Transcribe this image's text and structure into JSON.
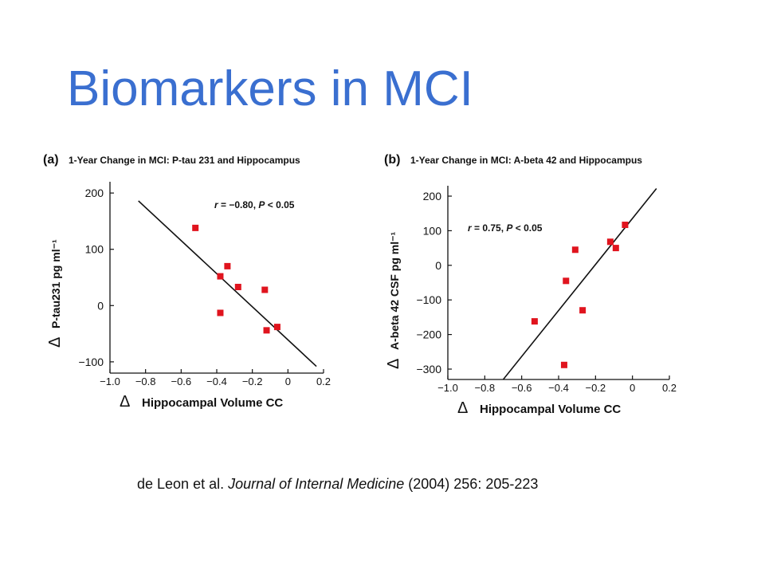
{
  "slide": {
    "title": "Biomarkers in MCI",
    "title_color": "#3a6fd0",
    "marker_color": "#e0141e"
  },
  "citation": {
    "authors": "de Leon et al.",
    "journal": "Journal of Internal Medicine",
    "year": "(2004) 256: 205-223"
  },
  "chart_data": [
    {
      "type": "scatter",
      "panel_label": "(a)",
      "title": "1-Year Change in MCI: P-tau 231 and Hippocampus",
      "xlabel_symbol": "Δ",
      "xlabel": "Hippocampal Volume CC",
      "ylabel_symbol": "Δ",
      "ylabel": "P-tau231 pg ml⁻¹",
      "stat_r": "r",
      "stat_mid": " = −0.80, ",
      "stat_p": "P",
      "stat_end": " < 0.05",
      "xlim": [
        -1.0,
        0.2
      ],
      "ylim": [
        -120,
        220
      ],
      "xticks": [
        -1.0,
        -0.8,
        -0.6,
        -0.4,
        -0.2,
        0,
        0.2
      ],
      "xtick_labels": [
        "−1.0",
        "−0.8",
        "−0.6",
        "−0.4",
        "−0.2",
        "0",
        "0.2"
      ],
      "yticks": [
        200,
        100,
        0,
        -100
      ],
      "ytick_labels": [
        "200",
        "100",
        "0",
        "−100"
      ],
      "points": [
        {
          "x": -0.52,
          "y": 138
        },
        {
          "x": -0.34,
          "y": 70
        },
        {
          "x": -0.38,
          "y": 52
        },
        {
          "x": -0.28,
          "y": 33
        },
        {
          "x": -0.13,
          "y": 28
        },
        {
          "x": -0.38,
          "y": -13
        },
        {
          "x": -0.06,
          "y": -38
        },
        {
          "x": -0.12,
          "y": -44
        }
      ],
      "regression_line": [
        {
          "x": -0.84,
          "y": 186
        },
        {
          "x": 0.16,
          "y": -108
        }
      ]
    },
    {
      "type": "scatter",
      "panel_label": "(b)",
      "title": "1-Year Change in MCI: A-beta 42 and Hippocampus",
      "xlabel_symbol": "Δ",
      "xlabel": "Hippocampal Volume CC",
      "ylabel_symbol": "Δ",
      "ylabel": "A-beta 42 CSF pg ml⁻¹",
      "stat_r": "r",
      "stat_mid": " = 0.75, ",
      "stat_p": "P",
      "stat_end": " < 0.05",
      "xlim": [
        -1.0,
        0.2
      ],
      "ylim": [
        -330,
        230
      ],
      "xticks": [
        -1.0,
        -0.8,
        -0.6,
        -0.4,
        -0.2,
        0,
        0.2
      ],
      "xtick_labels": [
        "−1.0",
        "−0.8",
        "−0.6",
        "−0.4",
        "−0.2",
        "0",
        "0.2"
      ],
      "yticks": [
        200,
        100,
        0,
        -100,
        -200,
        -300
      ],
      "ytick_labels": [
        "200",
        "100",
        "0",
        "−100",
        "−200",
        "−300"
      ],
      "points": [
        {
          "x": -0.04,
          "y": 117
        },
        {
          "x": -0.12,
          "y": 68
        },
        {
          "x": -0.09,
          "y": 50
        },
        {
          "x": -0.31,
          "y": 45
        },
        {
          "x": -0.36,
          "y": -45
        },
        {
          "x": -0.27,
          "y": -130
        },
        {
          "x": -0.53,
          "y": -162
        },
        {
          "x": -0.37,
          "y": -288
        }
      ],
      "regression_line": [
        {
          "x": -0.7,
          "y": -330
        },
        {
          "x": 0.13,
          "y": 222
        }
      ]
    }
  ]
}
